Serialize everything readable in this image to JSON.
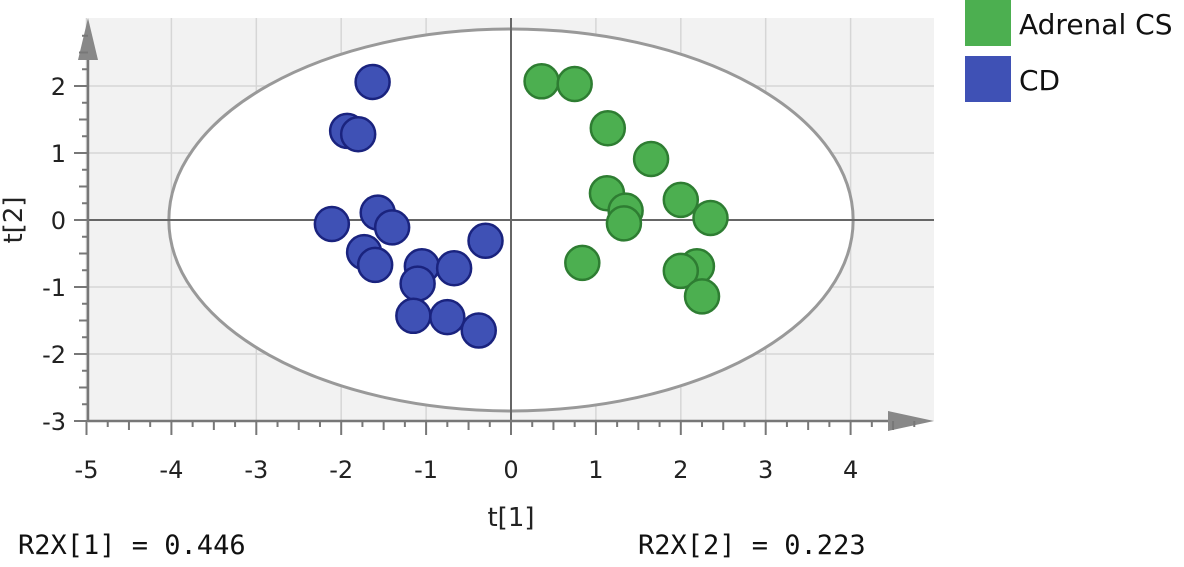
{
  "chart_data": {
    "type": "scatter",
    "title": "",
    "xlabel": "t[1]",
    "ylabel": "t[2]",
    "xlim": [
      -5,
      5
    ],
    "ylim": [
      -3,
      2.9
    ],
    "xticks": [
      -5,
      -4,
      -3,
      -2,
      -1,
      0,
      1,
      2,
      3,
      4
    ],
    "yticks": [
      -3,
      -2,
      -1,
      0,
      1,
      2
    ],
    "grid": true,
    "legend_position": "top-right, outside plot",
    "confidence_ellipse": {
      "center": [
        0,
        0
      ],
      "semi_axes": [
        4.03,
        2.85
      ],
      "color": "#999999"
    },
    "series": [
      {
        "name": "Adrenal CS",
        "color": "#4caf50",
        "points": [
          [
            0.36,
            2.07
          ],
          [
            0.75,
            2.03
          ],
          [
            1.14,
            1.37
          ],
          [
            1.65,
            0.91
          ],
          [
            1.13,
            0.4
          ],
          [
            1.35,
            0.14
          ],
          [
            1.33,
            -0.05
          ],
          [
            2.0,
            0.3
          ],
          [
            2.35,
            0.03
          ],
          [
            0.84,
            -0.64
          ],
          [
            2.19,
            -0.69
          ],
          [
            2.0,
            -0.76
          ],
          [
            2.25,
            -1.14
          ]
        ]
      },
      {
        "name": "CD",
        "color": "#3f51b5",
        "points": [
          [
            -1.63,
            2.06
          ],
          [
            -1.93,
            1.33
          ],
          [
            -1.8,
            1.28
          ],
          [
            -1.57,
            0.11
          ],
          [
            -2.11,
            -0.06
          ],
          [
            -1.4,
            -0.11
          ],
          [
            -1.73,
            -0.48
          ],
          [
            -1.6,
            -0.67
          ],
          [
            -1.05,
            -0.69
          ],
          [
            -0.67,
            -0.72
          ],
          [
            -0.3,
            -0.31
          ],
          [
            -1.1,
            -0.95
          ],
          [
            -1.15,
            -1.43
          ],
          [
            -0.75,
            -1.45
          ],
          [
            -0.38,
            -1.65
          ]
        ]
      }
    ]
  },
  "stats": {
    "r2x1": "R2X[1] = 0.446",
    "r2x2": "R2X[2] = 0.223"
  }
}
